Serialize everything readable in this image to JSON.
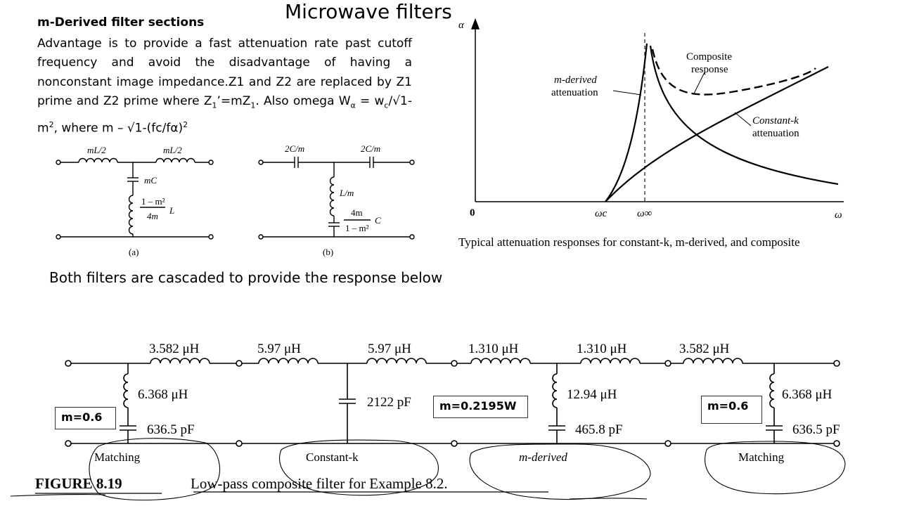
{
  "slide": {
    "title": "Microwave filters",
    "heading": "m-Derived  filter sections",
    "para_1": "Advantage is to provide a fast attenuation rate past cutoff frequency and avoid the disadvantage of having a nonconstant image impedance.Z1 and Z2 are replaced by Z1 prime and Z2 prime where Z",
    "para_sub1": "1",
    "para_2": "’=mZ",
    "para_sub2": "1",
    "para_3": ". Also omega W",
    "para_sub3": "α",
    "para_4": "  = w",
    "para_sub4": "c",
    "para_5": "/√1-m",
    "para_sup5": "2",
    "para_6": ", where m – √1-(fc/fα)",
    "para_sup6": "2",
    "cascade_note": "Both filters are cascaded to provide the response below"
  },
  "circuit_a": {
    "l_left": "mL/2",
    "l_right": "mL/2",
    "cap": "mC",
    "ind_num": "1 – m²",
    "ind_den": "4m",
    "ind_sym": "L",
    "caption": "(a)"
  },
  "circuit_b": {
    "c_left": "2C/m",
    "c_right": "2C/m",
    "ind": "L/m",
    "cap_num": "4m",
    "cap_den": "1 – m²",
    "cap_sym": "C",
    "caption": "(b)"
  },
  "response_plot": {
    "y_axis": "α",
    "origin": "0",
    "x_axis": "ω",
    "omega_c": "ωc",
    "omega_inf": "ω∞",
    "label_mderived_1": "m-derived",
    "label_mderived_2": "attenuation",
    "label_composite_1": "Composite",
    "label_composite_2": "response",
    "label_constk_1": "Constant-k",
    "label_constk_2": "attenuation",
    "caption": "Typical attenuation responses for constant-k, m-derived, and composite"
  },
  "composite_filter": {
    "l1": "3.582 μH",
    "l2": "5.97 μH",
    "l3": "5.97 μH",
    "l4": "1.310 μH",
    "l5": "1.310 μH",
    "l6": "3.582 μH",
    "shunt1_l": "6.368 μH",
    "shunt1_c": "636.5 pF",
    "shunt2_c": "2122 pF",
    "shunt3_l": "12.94 μH",
    "shunt3_c": "465.8 pF",
    "shunt4_l": "6.368 μH",
    "shunt4_c": "636.5 pF",
    "sec_matching_1": "Matching",
    "sec_constk": "Constant-k",
    "sec_mderived": "m-derived",
    "sec_matching_2": "Matching",
    "figure_label": "FIGURE 8.19",
    "figure_caption": "Low-pass composite filter for Example 8.2.",
    "m_box_left": "m=0.6",
    "m_box_center": "m=0.2195W",
    "m_box_right": "m=0.6"
  }
}
